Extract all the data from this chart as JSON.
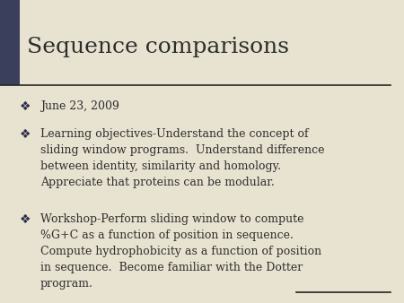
{
  "title": "Sequence comparisons",
  "title_fontsize": 18,
  "title_color": "#2d2d2d",
  "background_color": "#e8e3d0",
  "left_bar_color": "#3a3f5c",
  "separator_line_color": "#222222",
  "bullet_color": "#2a2a4a",
  "text_color": "#2d2d2d",
  "bullet_char": "❖",
  "bullet_items": [
    "June 23, 2009",
    "Learning objectives-Understand the concept of\nsliding window programs.  Understand difference\nbetween identity, similarity and homology.\nAppreciate that proteins can be modular.",
    "Workshop-Perform sliding window to compute\n%G+C as a function of position in sequence.\nCompute hydrophobicity as a function of position\nin sequence.  Become familiar with the Dotter\nprogram."
  ],
  "bullet_fontsize": 9.0,
  "figsize": [
    4.5,
    3.38
  ],
  "dpi": 100
}
